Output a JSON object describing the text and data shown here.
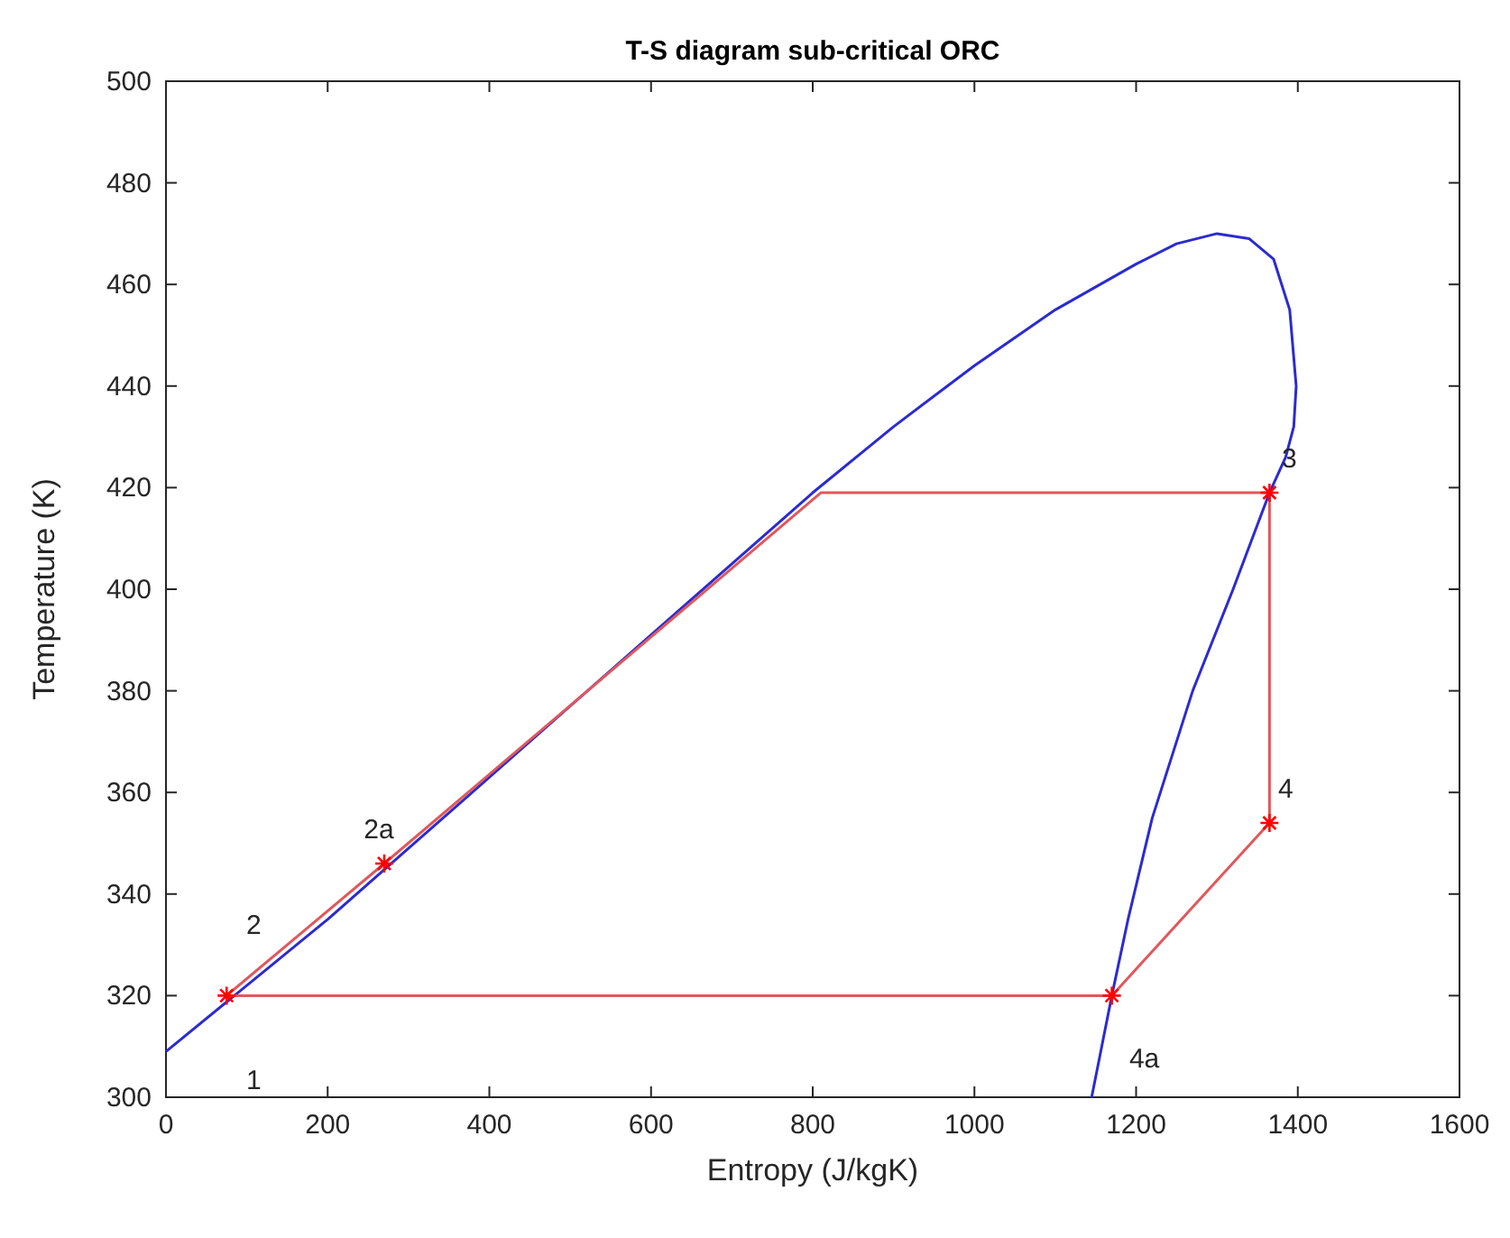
{
  "chart_data": {
    "type": "line",
    "title": "T-S diagram sub-critical ORC",
    "xlabel": "Entropy (J/kgK)",
    "ylabel": "Temperature (K)",
    "xlim": [
      0,
      1600
    ],
    "xticks": [
      0,
      200,
      400,
      600,
      800,
      1000,
      1200,
      1400,
      1600
    ],
    "ylim": [
      300,
      500
    ],
    "yticks": [
      300,
      320,
      340,
      360,
      380,
      400,
      420,
      440,
      460,
      480,
      500
    ],
    "grid": false,
    "series": [
      {
        "color": "#2b2bd0",
        "x": [
          0,
          100,
          200,
          300,
          400,
          500,
          600,
          700,
          800,
          900,
          1000,
          1100,
          1200,
          1250,
          1300,
          1340,
          1370,
          1390,
          1398,
          1395,
          1385,
          1365,
          1320,
          1270,
          1220,
          1190,
          1170,
          1155,
          1145
        ],
        "values": [
          309,
          322,
          335,
          349,
          363,
          377,
          391,
          405,
          419,
          432,
          444,
          455,
          464,
          468,
          470,
          469,
          465,
          455,
          440,
          432,
          426,
          419,
          400,
          380,
          355,
          335,
          320,
          308,
          300
        ],
        "line_style": "solid"
      },
      {
        "color": "#e0585c",
        "x": [
          75,
          270,
          810,
          1365
        ],
        "values": [
          320,
          346,
          419,
          419
        ],
        "line_style": "solid"
      },
      {
        "color": "#e0585c",
        "x": [
          1365,
          1365
        ],
        "values": [
          419,
          354
        ],
        "line_style": "solid"
      },
      {
        "color": "#e0585c",
        "x": [
          75,
          1170,
          1365
        ],
        "values": [
          320,
          320,
          354
        ],
        "line_style": "solid"
      },
      {
        "type": "scatter",
        "color": "#ff0000",
        "x": [
          75,
          270,
          1365,
          1365,
          1170
        ],
        "values": [
          320,
          346,
          419,
          354,
          320
        ],
        "marker": "cross"
      }
    ],
    "annotations": [
      {
        "text": "1",
        "x": 75,
        "y": 320
      },
      {
        "text": "2",
        "x": 75,
        "y": 320
      },
      {
        "text": "2a",
        "x": 270,
        "y": 346
      },
      {
        "text": "3",
        "x": 1365,
        "y": 419
      },
      {
        "text": "4",
        "x": 1365,
        "y": 354
      },
      {
        "text": "4a",
        "x": 1170,
        "y": 320
      }
    ]
  }
}
